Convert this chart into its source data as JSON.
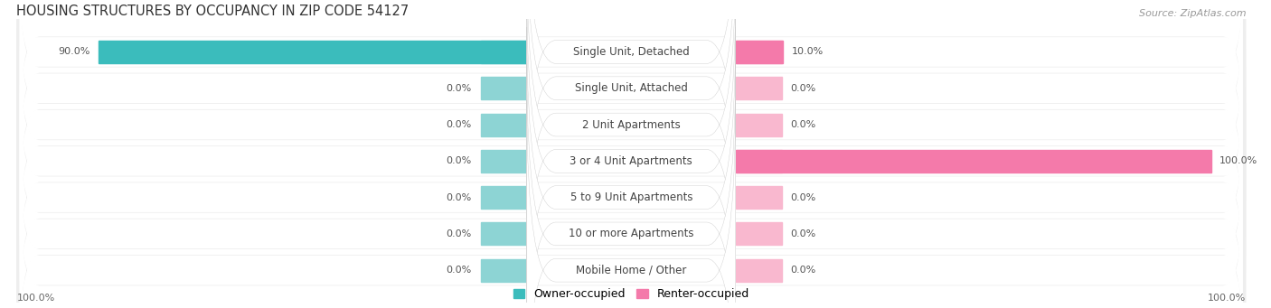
{
  "title": "HOUSING STRUCTURES BY OCCUPANCY IN ZIP CODE 54127",
  "source": "Source: ZipAtlas.com",
  "categories": [
    "Single Unit, Detached",
    "Single Unit, Attached",
    "2 Unit Apartments",
    "3 or 4 Unit Apartments",
    "5 to 9 Unit Apartments",
    "10 or more Apartments",
    "Mobile Home / Other"
  ],
  "owner_values": [
    90.0,
    0.0,
    0.0,
    0.0,
    0.0,
    0.0,
    0.0
  ],
  "renter_values": [
    10.0,
    0.0,
    0.0,
    100.0,
    0.0,
    0.0,
    0.0
  ],
  "owner_color": "#3bbcbc",
  "renter_color": "#f47aaa",
  "owner_stub_color": "#8dd4d4",
  "renter_stub_color": "#f9b8cf",
  "row_bg_color": "#eeeeee",
  "title_fontsize": 10.5,
  "source_fontsize": 8,
  "label_fontsize": 8.5,
  "value_fontsize": 8,
  "legend_fontsize": 9,
  "axis_label_fontsize": 8,
  "background_color": "#ffffff",
  "bottom_left_label": "100.0%",
  "bottom_right_label": "100.0%"
}
